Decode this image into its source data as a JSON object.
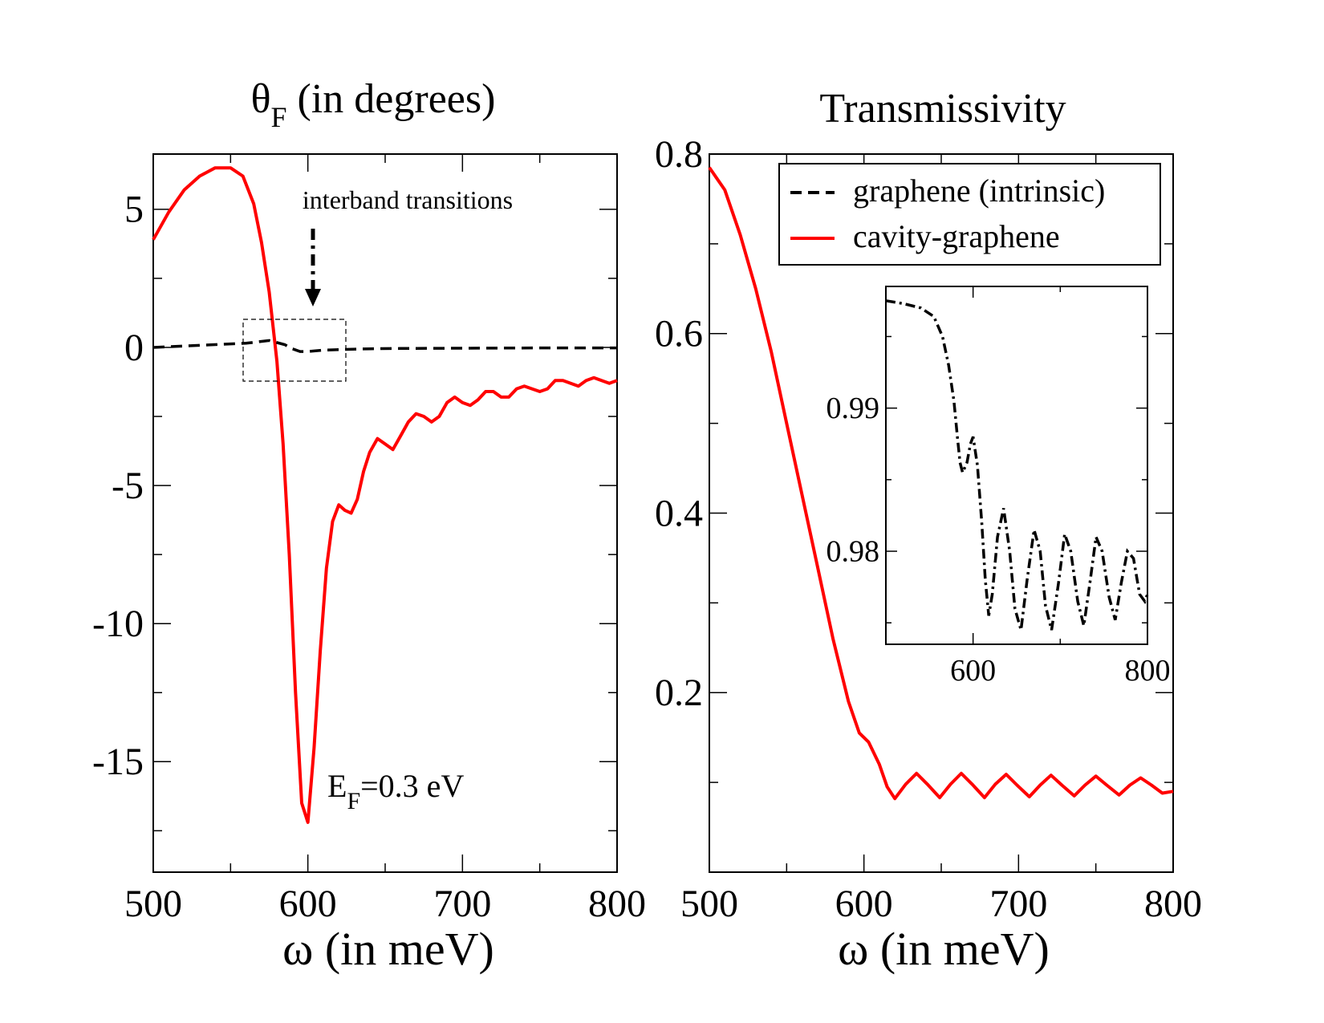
{
  "chart_data": [
    {
      "id": "left",
      "type": "line",
      "title": "θ",
      "title_sub": "F",
      "title_rest": " (in degrees)",
      "xlabel": "ω (in meV)",
      "ylabel": "",
      "xlim": [
        500,
        800
      ],
      "ylim": [
        -19,
        7
      ],
      "xticks": [
        500,
        600,
        700,
        800
      ],
      "xtick_labels": [
        "500",
        "600",
        "700",
        "800"
      ],
      "yticks": [
        -15,
        -10,
        -5,
        0,
        5
      ],
      "ytick_labels": [
        "-15",
        "-10",
        "-5",
        "0",
        "5"
      ],
      "series": [
        {
          "name": "cavity-graphene",
          "color": "#ff0000",
          "style": "solid",
          "x": [
            500,
            510,
            520,
            530,
            540,
            550,
            558,
            565,
            570,
            575,
            580,
            584,
            588,
            592,
            596,
            600,
            604,
            608,
            612,
            616,
            620,
            624,
            628,
            632,
            636,
            640,
            645,
            650,
            655,
            660,
            665,
            670,
            675,
            680,
            685,
            690,
            695,
            700,
            705,
            710,
            715,
            720,
            725,
            730,
            735,
            740,
            745,
            750,
            755,
            760,
            765,
            770,
            775,
            780,
            785,
            790,
            795,
            800
          ],
          "y": [
            3.9,
            4.9,
            5.7,
            6.2,
            6.5,
            6.5,
            6.2,
            5.2,
            3.8,
            2.0,
            -0.5,
            -3.5,
            -7.5,
            -12.5,
            -16.5,
            -17.2,
            -14.5,
            -11.0,
            -8.0,
            -6.3,
            -5.7,
            -5.9,
            -6.0,
            -5.5,
            -4.5,
            -3.8,
            -3.3,
            -3.5,
            -3.7,
            -3.2,
            -2.7,
            -2.4,
            -2.5,
            -2.7,
            -2.5,
            -2.0,
            -1.8,
            -2.0,
            -2.1,
            -1.9,
            -1.6,
            -1.6,
            -1.8,
            -1.8,
            -1.5,
            -1.4,
            -1.5,
            -1.6,
            -1.5,
            -1.2,
            -1.2,
            -1.3,
            -1.4,
            -1.2,
            -1.1,
            -1.2,
            -1.3,
            -1.2
          ]
        },
        {
          "name": "graphene (intrinsic)",
          "color": "#000000",
          "style": "dashed",
          "x": [
            500,
            520,
            540,
            560,
            575,
            585,
            590,
            595,
            600,
            610,
            620,
            640,
            660,
            700,
            750,
            800
          ],
          "y": [
            0.0,
            0.05,
            0.1,
            0.15,
            0.25,
            0.1,
            -0.05,
            -0.15,
            -0.15,
            -0.1,
            -0.08,
            -0.05,
            -0.04,
            -0.03,
            -0.02,
            -0.02
          ]
        }
      ],
      "annotations": {
        "interband_label": "interband transitions",
        "ef_label_main": "E",
        "ef_label_sub": "F",
        "ef_label_rest": "=0.3 eV"
      }
    },
    {
      "id": "right",
      "type": "line",
      "title": "Transmissivity",
      "xlabel": "ω (in meV)",
      "ylabel": "",
      "xlim": [
        500,
        800
      ],
      "ylim": [
        0.0,
        0.8
      ],
      "xticks": [
        500,
        600,
        700,
        800
      ],
      "xtick_labels": [
        "500",
        "600",
        "700",
        "800"
      ],
      "yticks": [
        0.2,
        0.4,
        0.6,
        0.8
      ],
      "ytick_labels": [
        "0.2",
        "0.4",
        "0.6",
        "0.8"
      ],
      "legend": {
        "position": "top-right",
        "entries": [
          {
            "label": "graphene (intrinsic)",
            "color": "#000000",
            "style": "dashed"
          },
          {
            "label": "cavity-graphene",
            "color": "#ff0000",
            "style": "solid"
          }
        ]
      },
      "series": [
        {
          "name": "cavity-graphene",
          "color": "#ff0000",
          "style": "solid",
          "x": [
            500,
            510,
            520,
            530,
            540,
            550,
            560,
            570,
            580,
            590,
            597,
            603,
            610,
            615,
            620,
            627,
            634,
            641,
            649,
            656,
            663,
            670,
            678,
            685,
            692,
            699,
            707,
            714,
            721,
            728,
            736,
            743,
            750,
            757,
            765,
            772,
            779,
            786,
            793,
            800
          ],
          "y": [
            0.785,
            0.76,
            0.71,
            0.65,
            0.58,
            0.5,
            0.42,
            0.34,
            0.26,
            0.19,
            0.155,
            0.145,
            0.12,
            0.095,
            0.082,
            0.098,
            0.11,
            0.098,
            0.083,
            0.098,
            0.11,
            0.098,
            0.083,
            0.098,
            0.109,
            0.097,
            0.084,
            0.097,
            0.108,
            0.097,
            0.085,
            0.097,
            0.107,
            0.097,
            0.086,
            0.097,
            0.105,
            0.097,
            0.088,
            0.09
          ]
        }
      ],
      "inset": {
        "xlim": [
          500,
          800
        ],
        "ylim": [
          0.9735,
          0.9985
        ],
        "xticks": [
          600,
          800
        ],
        "xtick_labels": [
          "600",
          "800"
        ],
        "yticks": [
          0.98,
          0.99
        ],
        "ytick_labels": [
          "0.98",
          "0.99"
        ],
        "series": [
          {
            "name": "graphene (intrinsic)",
            "color": "#000000",
            "style": "dashed",
            "x": [
              500,
              520,
              540,
              555,
              565,
              572,
              578,
              582,
              585,
              588,
              593,
              597,
              600,
              605,
              610,
              614,
              618,
              622,
              628,
              635,
              642,
              648,
              655,
              662,
              670,
              677,
              683,
              690,
              698,
              705,
              712,
              720,
              727,
              734,
              741,
              748,
              756,
              763,
              770,
              777,
              784,
              791,
              797,
              800
            ],
            "y": [
              0.9975,
              0.9973,
              0.997,
              0.9964,
              0.995,
              0.993,
              0.9905,
              0.988,
              0.9862,
              0.9855,
              0.9862,
              0.9875,
              0.988,
              0.986,
              0.982,
              0.978,
              0.9755,
              0.977,
              0.981,
              0.983,
              0.98,
              0.976,
              0.9745,
              0.978,
              0.9815,
              0.98,
              0.9762,
              0.9745,
              0.9778,
              0.9812,
              0.98,
              0.9765,
              0.9748,
              0.9778,
              0.981,
              0.98,
              0.9768,
              0.9752,
              0.9778,
              0.98,
              0.9795,
              0.977,
              0.9765,
              0.977
            ]
          }
        ]
      }
    }
  ]
}
